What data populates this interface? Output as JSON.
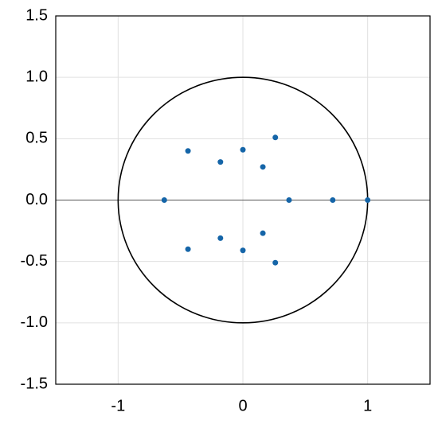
{
  "chart_data": {
    "type": "scatter",
    "x": [
      -0.63,
      0.37,
      0.72,
      1.0,
      -0.44,
      -0.44,
      -0.18,
      -0.18,
      0,
      0,
      0.16,
      0.16,
      0.26,
      0.26
    ],
    "values": [
      0,
      0,
      0,
      0,
      0.4,
      -0.4,
      0.31,
      -0.31,
      0.41,
      -0.41,
      0.27,
      -0.27,
      0.51,
      -0.51
    ],
    "color": "#1565a8",
    "circle": {
      "radius": 1,
      "color": "#000000"
    },
    "xlim": [
      -1.5,
      1.5
    ],
    "xticks": [
      -1,
      0,
      1
    ],
    "ylim": [
      -1.5,
      1.5
    ],
    "yticks": [
      {
        "value": -1.5,
        "label": "-1.5"
      },
      {
        "value": -1,
        "label": "-1.0"
      },
      {
        "value": -0.5,
        "label": "-0.5"
      },
      {
        "value": 0,
        "label": "0.0"
      },
      {
        "value": 0.5,
        "label": "0.5"
      },
      {
        "value": 1,
        "label": "1.0"
      },
      {
        "value": 1.5,
        "label": "1.5"
      }
    ],
    "grid": true
  }
}
